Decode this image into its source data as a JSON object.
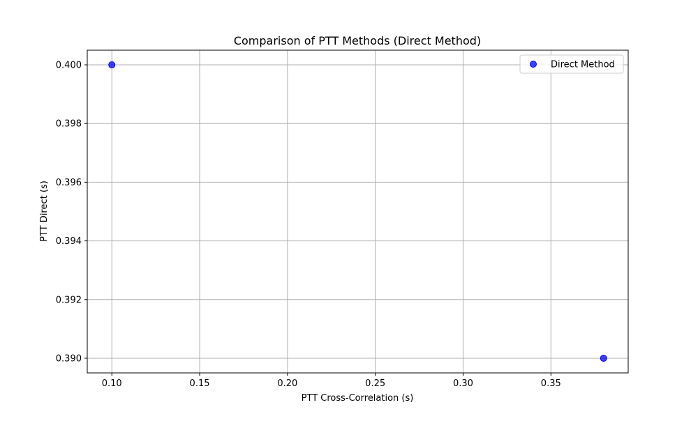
{
  "chart_data": {
    "type": "scatter",
    "title": "Comparison of PTT Methods (Direct Method)",
    "xlabel": "PTT Cross-Correlation (s)",
    "ylabel": "PTT Direct (s)",
    "xlim": [
      0.086,
      0.394
    ],
    "ylim": [
      0.3895,
      0.4005
    ],
    "xticks": [
      0.1,
      0.15,
      0.2,
      0.25,
      0.3,
      0.35
    ],
    "xtick_labels": [
      "0.10",
      "0.15",
      "0.20",
      "0.25",
      "0.30",
      "0.35"
    ],
    "yticks": [
      0.39,
      0.392,
      0.394,
      0.396,
      0.398,
      0.4
    ],
    "ytick_labels": [
      "0.390",
      "0.392",
      "0.394",
      "0.396",
      "0.398",
      "0.400"
    ],
    "grid": true,
    "legend_position": "top-right",
    "series": [
      {
        "name": "Direct Method",
        "color": "#0000ff",
        "x": [
          0.1,
          0.38
        ],
        "y": [
          0.4,
          0.39
        ]
      }
    ]
  }
}
